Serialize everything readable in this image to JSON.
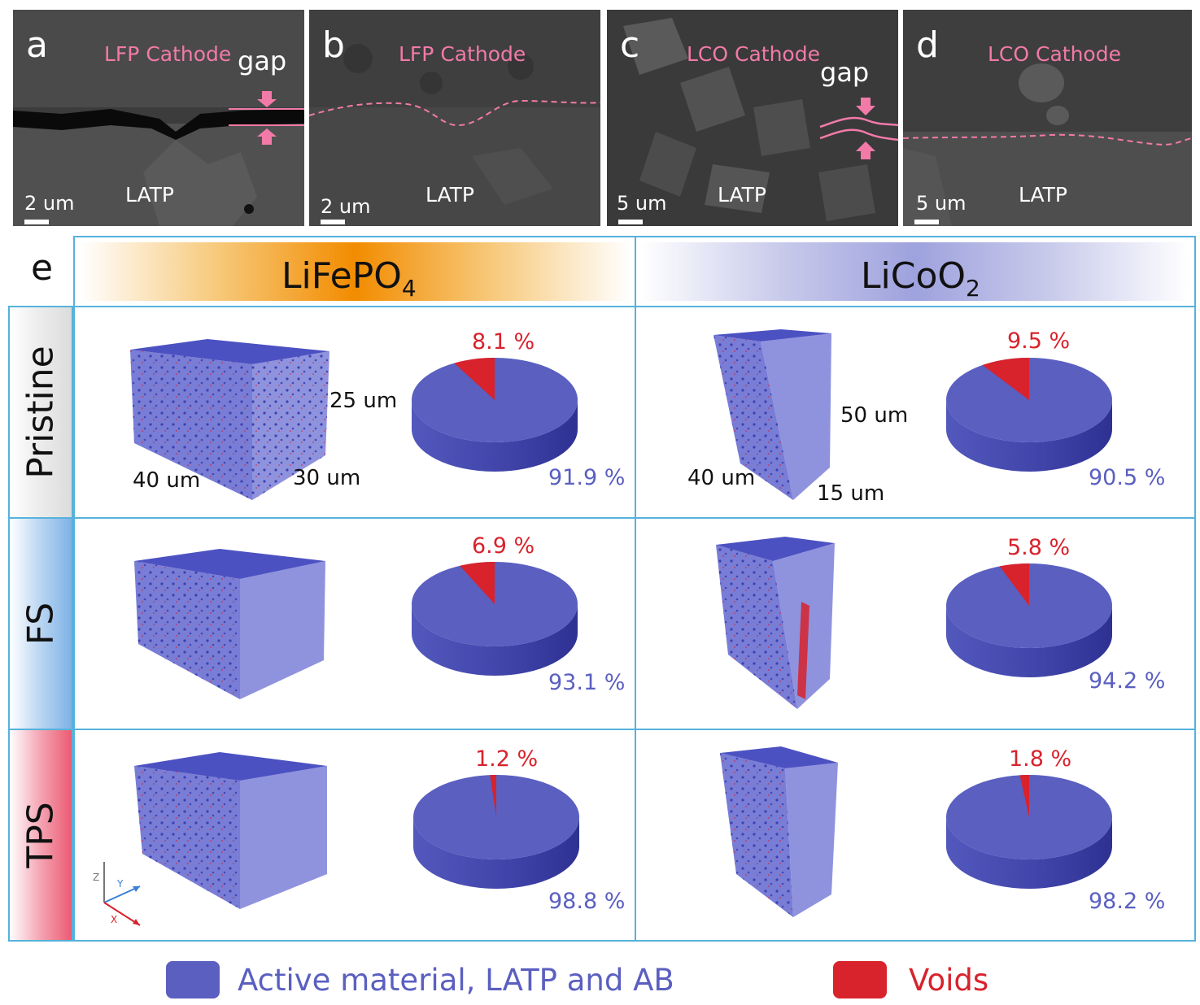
{
  "sem_panels": [
    {
      "letter": "a",
      "cathode": "LFP Cathode",
      "latp": "LATP",
      "scale": "2 um",
      "gap": "gap"
    },
    {
      "letter": "b",
      "cathode": "LFP Cathode",
      "latp": "LATP",
      "scale": "2 um"
    },
    {
      "letter": "c",
      "cathode": "LCO Cathode",
      "latp": "LATP",
      "scale": "5 um",
      "gap": "gap"
    },
    {
      "letter": "d",
      "cathode": "LCO Cathode",
      "latp": "LATP",
      "scale": "5 um"
    }
  ],
  "panel_e": {
    "letter": "e",
    "col_lfp": {
      "base": "LiFePO",
      "sub": "4"
    },
    "col_lco": {
      "base": "LiCoO",
      "sub": "2"
    },
    "rows": [
      "Pristine",
      "FS",
      "TPS"
    ],
    "dims_lfp": {
      "height": "25 um",
      "width": "40 um",
      "depth": "30 um"
    },
    "dims_lco": {
      "height": "50 um",
      "width": "40 um",
      "depth": "15 um"
    },
    "axes": {
      "x": "X",
      "y": "Y",
      "z": "Z"
    }
  },
  "chart_data": [
    {
      "type": "pie",
      "title": "LiFePO4 Pristine",
      "labels": [
        "Voids",
        "Active material, LATP and AB"
      ],
      "values": [
        8.1,
        91.9
      ],
      "void_label": "8.1 %",
      "active_label": "91.9 %"
    },
    {
      "type": "pie",
      "title": "LiCoO2 Pristine",
      "labels": [
        "Voids",
        "Active material, LATP and AB"
      ],
      "values": [
        9.5,
        90.5
      ],
      "void_label": "9.5 %",
      "active_label": "90.5 %"
    },
    {
      "type": "pie",
      "title": "LiFePO4 FS",
      "labels": [
        "Voids",
        "Active material, LATP and AB"
      ],
      "values": [
        6.9,
        93.1
      ],
      "void_label": "6.9 %",
      "active_label": "93.1 %"
    },
    {
      "type": "pie",
      "title": "LiCoO2 FS",
      "labels": [
        "Voids",
        "Active material, LATP and AB"
      ],
      "values": [
        5.8,
        94.2
      ],
      "void_label": "5.8 %",
      "active_label": "94.2 %"
    },
    {
      "type": "pie",
      "title": "LiFePO4 TPS",
      "labels": [
        "Voids",
        "Active material, LATP and AB"
      ],
      "values": [
        1.2,
        98.8
      ],
      "void_label": "1.2 %",
      "active_label": "98.8 %"
    },
    {
      "type": "pie",
      "title": "LiCoO2 TPS",
      "labels": [
        "Voids",
        "Active material, LATP and AB"
      ],
      "values": [
        1.8,
        98.2
      ],
      "void_label": "1.8 %",
      "active_label": "98.2 %"
    }
  ],
  "legend": {
    "active": "Active material, LATP and AB",
    "voids": "Voids"
  },
  "colors": {
    "active": "#5a5fc0",
    "active_dark": "#2e3192",
    "voids": "#d8222c",
    "border": "#56b2dc",
    "pink": "#f27aa8"
  }
}
